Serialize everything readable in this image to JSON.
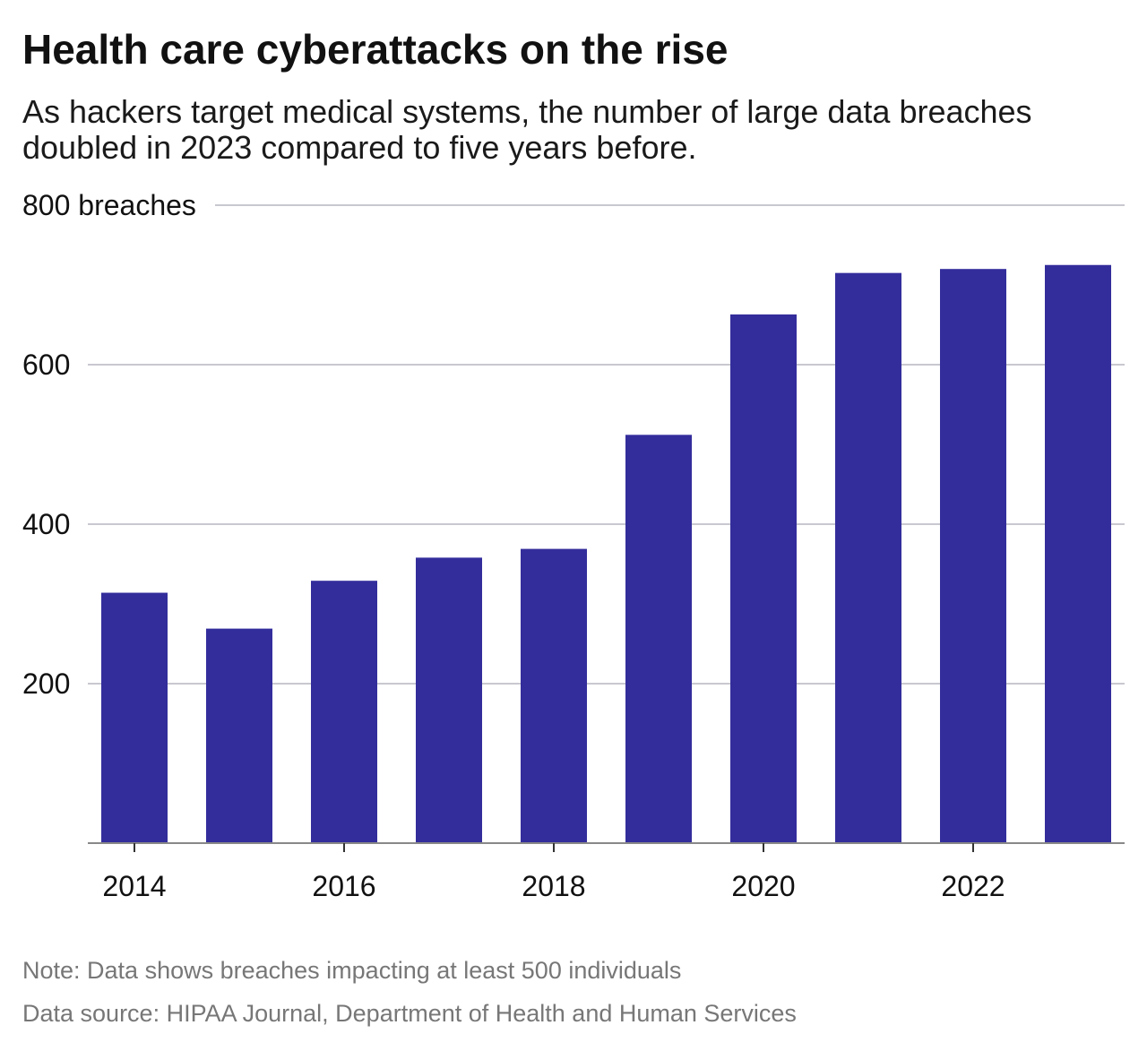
{
  "title": "Health care cyberattacks on the rise",
  "subtitle": "As hackers target medical systems, the number of large data breaches doubled in 2023 compared to five years before.",
  "note": "Note: Data shows breaches impacting at least 500 individuals",
  "source": "Data source: HIPAA Journal, Department of Health and Human Services",
  "chart_data": {
    "type": "bar",
    "title": "Health care cyberattacks on the rise",
    "xlabel": "",
    "ylabel": "",
    "categories": [
      "2014",
      "2015",
      "2016",
      "2017",
      "2018",
      "2019",
      "2020",
      "2021",
      "2022",
      "2023"
    ],
    "values": [
      314,
      269,
      329,
      358,
      369,
      512,
      663,
      715,
      720,
      725
    ],
    "ylim": [
      0,
      800
    ],
    "yticks": [
      200,
      400,
      600,
      800
    ],
    "ytick_labels": [
      "200",
      "400",
      "600",
      "800 breaches"
    ],
    "xtick_labels": [
      "2014",
      "2016",
      "2018",
      "2020",
      "2022"
    ],
    "grid": true,
    "bar_color": "#332d9c",
    "grid_color": "#b5b5c0"
  }
}
